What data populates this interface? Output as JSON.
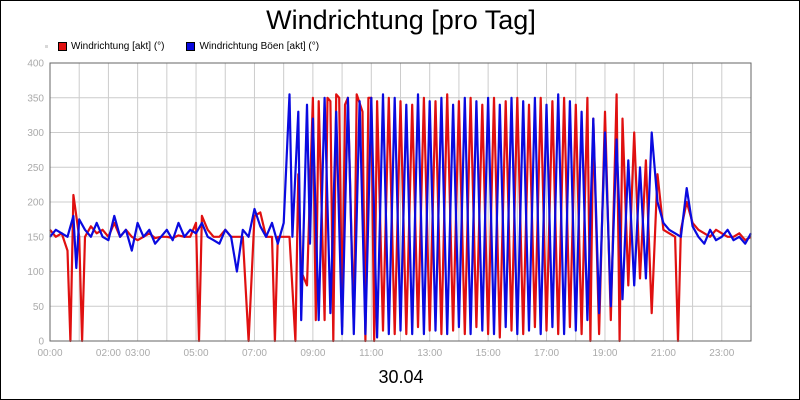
{
  "chart_data": {
    "type": "line",
    "title": "Windrichtung [pro Tag]",
    "xlabel": "30.04",
    "ylabel": "",
    "ylim": [
      0,
      400
    ],
    "yticks": [
      0,
      50,
      100,
      150,
      200,
      250,
      300,
      350,
      400
    ],
    "xlim": [
      0,
      24
    ],
    "xticks": [
      {
        "pos": 0,
        "label": "00:00"
      },
      {
        "pos": 2,
        "label": "02:00"
      },
      {
        "pos": 3,
        "label": "03:00"
      },
      {
        "pos": 5,
        "label": "05:00"
      },
      {
        "pos": 7,
        "label": "07:00"
      },
      {
        "pos": 9,
        "label": "09:00"
      },
      {
        "pos": 11,
        "label": "11:00"
      },
      {
        "pos": 13,
        "label": "13:00"
      },
      {
        "pos": 15,
        "label": "15:00"
      },
      {
        "pos": 17,
        "label": "17:00"
      },
      {
        "pos": 19,
        "label": "19:00"
      },
      {
        "pos": 21,
        "label": "21:00"
      },
      {
        "pos": 23,
        "label": "23:00"
      }
    ],
    "grid": true,
    "legend_position": "top-left",
    "series": [
      {
        "name": "Windrichtung [akt] (°)",
        "color": "#e01010",
        "points": [
          [
            0.0,
            160
          ],
          [
            0.2,
            150
          ],
          [
            0.4,
            155
          ],
          [
            0.6,
            130
          ],
          [
            0.7,
            0
          ],
          [
            0.8,
            210
          ],
          [
            1.0,
            150
          ],
          [
            1.1,
            0
          ],
          [
            1.2,
            150
          ],
          [
            1.4,
            165
          ],
          [
            1.6,
            155
          ],
          [
            1.8,
            160
          ],
          [
            2.0,
            150
          ],
          [
            2.2,
            170
          ],
          [
            2.4,
            150
          ],
          [
            2.6,
            160
          ],
          [
            2.8,
            150
          ],
          [
            3.0,
            145
          ],
          [
            3.2,
            150
          ],
          [
            3.4,
            155
          ],
          [
            3.6,
            148
          ],
          [
            3.8,
            150
          ],
          [
            4.0,
            150
          ],
          [
            4.2,
            148
          ],
          [
            4.4,
            152
          ],
          [
            4.6,
            150
          ],
          [
            4.8,
            150
          ],
          [
            5.0,
            170
          ],
          [
            5.1,
            0
          ],
          [
            5.2,
            180
          ],
          [
            5.4,
            160
          ],
          [
            5.6,
            150
          ],
          [
            5.8,
            150
          ],
          [
            6.0,
            160
          ],
          [
            6.2,
            150
          ],
          [
            6.4,
            150
          ],
          [
            6.6,
            150
          ],
          [
            6.8,
            0
          ],
          [
            7.0,
            180
          ],
          [
            7.2,
            185
          ],
          [
            7.4,
            150
          ],
          [
            7.6,
            150
          ],
          [
            7.7,
            0
          ],
          [
            7.8,
            150
          ],
          [
            8.0,
            150
          ],
          [
            8.2,
            150
          ],
          [
            8.4,
            0
          ],
          [
            8.5,
            240
          ],
          [
            8.6,
            100
          ],
          [
            8.8,
            80
          ],
          [
            9.0,
            350
          ],
          [
            9.1,
            30
          ],
          [
            9.2,
            345
          ],
          [
            9.4,
            30
          ],
          [
            9.5,
            350
          ],
          [
            9.6,
            345
          ],
          [
            9.7,
            0
          ],
          [
            9.8,
            355
          ],
          [
            9.9,
            350
          ],
          [
            10.0,
            20
          ],
          [
            10.1,
            340
          ],
          [
            10.2,
            350
          ],
          [
            10.4,
            20
          ],
          [
            10.5,
            355
          ],
          [
            10.7,
            330
          ],
          [
            10.8,
            0
          ],
          [
            10.9,
            350
          ],
          [
            11.0,
            350
          ],
          [
            11.1,
            0
          ],
          [
            11.2,
            345
          ],
          [
            11.4,
            15
          ],
          [
            11.6,
            350
          ],
          [
            11.8,
            10
          ],
          [
            12.0,
            345
          ],
          [
            12.2,
            10
          ],
          [
            12.4,
            340
          ],
          [
            12.6,
            20
          ],
          [
            12.8,
            350
          ],
          [
            13.0,
            15
          ],
          [
            13.2,
            345
          ],
          [
            13.4,
            10
          ],
          [
            13.6,
            355
          ],
          [
            13.8,
            15
          ],
          [
            14.0,
            345
          ],
          [
            14.2,
            10
          ],
          [
            14.4,
            350
          ],
          [
            14.6,
            20
          ],
          [
            14.8,
            340
          ],
          [
            15.0,
            10
          ],
          [
            15.2,
            350
          ],
          [
            15.4,
            5
          ],
          [
            15.6,
            345
          ],
          [
            15.8,
            15
          ],
          [
            16.0,
            350
          ],
          [
            16.2,
            10
          ],
          [
            16.4,
            340
          ],
          [
            16.6,
            20
          ],
          [
            16.8,
            350
          ],
          [
            17.0,
            15
          ],
          [
            17.2,
            345
          ],
          [
            17.4,
            10
          ],
          [
            17.6,
            350
          ],
          [
            17.8,
            20
          ],
          [
            18.0,
            340
          ],
          [
            18.2,
            10
          ],
          [
            18.4,
            350
          ],
          [
            18.5,
            0
          ],
          [
            18.6,
            320
          ],
          [
            18.8,
            10
          ],
          [
            19.0,
            330
          ],
          [
            19.2,
            30
          ],
          [
            19.4,
            355
          ],
          [
            19.5,
            0
          ],
          [
            19.6,
            320
          ],
          [
            19.8,
            80
          ],
          [
            20.0,
            300
          ],
          [
            20.2,
            90
          ],
          [
            20.4,
            260
          ],
          [
            20.6,
            40
          ],
          [
            20.8,
            240
          ],
          [
            21.0,
            160
          ],
          [
            21.2,
            155
          ],
          [
            21.4,
            150
          ],
          [
            21.5,
            0
          ],
          [
            21.6,
            160
          ],
          [
            21.8,
            200
          ],
          [
            22.0,
            170
          ],
          [
            22.2,
            160
          ],
          [
            22.4,
            155
          ],
          [
            22.6,
            150
          ],
          [
            22.8,
            160
          ],
          [
            23.0,
            155
          ],
          [
            23.2,
            150
          ],
          [
            23.4,
            150
          ],
          [
            23.6,
            155
          ],
          [
            23.8,
            145
          ],
          [
            24.0,
            150
          ]
        ]
      },
      {
        "name": "Windrichtung Böen [akt] (°)",
        "color": "#0a0ae0",
        "points": [
          [
            0.0,
            150
          ],
          [
            0.2,
            160
          ],
          [
            0.4,
            155
          ],
          [
            0.6,
            150
          ],
          [
            0.8,
            180
          ],
          [
            0.9,
            105
          ],
          [
            1.0,
            175
          ],
          [
            1.2,
            160
          ],
          [
            1.4,
            150
          ],
          [
            1.6,
            170
          ],
          [
            1.8,
            150
          ],
          [
            2.0,
            145
          ],
          [
            2.2,
            180
          ],
          [
            2.4,
            150
          ],
          [
            2.6,
            160
          ],
          [
            2.8,
            130
          ],
          [
            3.0,
            170
          ],
          [
            3.2,
            150
          ],
          [
            3.4,
            160
          ],
          [
            3.6,
            140
          ],
          [
            3.8,
            150
          ],
          [
            4.0,
            160
          ],
          [
            4.2,
            145
          ],
          [
            4.4,
            170
          ],
          [
            4.6,
            150
          ],
          [
            4.8,
            160
          ],
          [
            5.0,
            155
          ],
          [
            5.2,
            170
          ],
          [
            5.4,
            150
          ],
          [
            5.6,
            145
          ],
          [
            5.8,
            140
          ],
          [
            6.0,
            160
          ],
          [
            6.2,
            150
          ],
          [
            6.4,
            100
          ],
          [
            6.6,
            160
          ],
          [
            6.8,
            150
          ],
          [
            7.0,
            190
          ],
          [
            7.2,
            165
          ],
          [
            7.4,
            150
          ],
          [
            7.6,
            170
          ],
          [
            7.8,
            140
          ],
          [
            8.0,
            170
          ],
          [
            8.2,
            355
          ],
          [
            8.3,
            150
          ],
          [
            8.5,
            330
          ],
          [
            8.6,
            30
          ],
          [
            8.8,
            340
          ],
          [
            8.9,
            140
          ],
          [
            9.0,
            320
          ],
          [
            9.2,
            30
          ],
          [
            9.4,
            350
          ],
          [
            9.6,
            40
          ],
          [
            9.8,
            330
          ],
          [
            10.0,
            10
          ],
          [
            10.2,
            350
          ],
          [
            10.4,
            10
          ],
          [
            10.6,
            345
          ],
          [
            10.8,
            10
          ],
          [
            11.0,
            350
          ],
          [
            11.2,
            5
          ],
          [
            11.4,
            355
          ],
          [
            11.6,
            10
          ],
          [
            11.8,
            350
          ],
          [
            12.0,
            15
          ],
          [
            12.2,
            340
          ],
          [
            12.4,
            10
          ],
          [
            12.6,
            355
          ],
          [
            12.8,
            10
          ],
          [
            13.0,
            345
          ],
          [
            13.2,
            15
          ],
          [
            13.4,
            350
          ],
          [
            13.6,
            10
          ],
          [
            13.8,
            340
          ],
          [
            14.0,
            20
          ],
          [
            14.2,
            350
          ],
          [
            14.4,
            10
          ],
          [
            14.6,
            345
          ],
          [
            14.8,
            15
          ],
          [
            15.0,
            350
          ],
          [
            15.2,
            10
          ],
          [
            15.4,
            340
          ],
          [
            15.6,
            20
          ],
          [
            15.8,
            350
          ],
          [
            16.0,
            10
          ],
          [
            16.2,
            345
          ],
          [
            16.4,
            15
          ],
          [
            16.6,
            350
          ],
          [
            16.8,
            10
          ],
          [
            17.0,
            340
          ],
          [
            17.2,
            20
          ],
          [
            17.4,
            355
          ],
          [
            17.6,
            10
          ],
          [
            17.8,
            345
          ],
          [
            18.0,
            15
          ],
          [
            18.2,
            330
          ],
          [
            18.4,
            30
          ],
          [
            18.6,
            320
          ],
          [
            18.8,
            40
          ],
          [
            19.0,
            300
          ],
          [
            19.2,
            50
          ],
          [
            19.4,
            290
          ],
          [
            19.6,
            60
          ],
          [
            19.8,
            260
          ],
          [
            20.0,
            80
          ],
          [
            20.2,
            250
          ],
          [
            20.4,
            90
          ],
          [
            20.6,
            300
          ],
          [
            20.8,
            200
          ],
          [
            21.0,
            170
          ],
          [
            21.2,
            160
          ],
          [
            21.4,
            155
          ],
          [
            21.6,
            150
          ],
          [
            21.8,
            220
          ],
          [
            22.0,
            165
          ],
          [
            22.2,
            150
          ],
          [
            22.4,
            140
          ],
          [
            22.6,
            160
          ],
          [
            22.8,
            145
          ],
          [
            23.0,
            150
          ],
          [
            23.2,
            160
          ],
          [
            23.4,
            145
          ],
          [
            23.6,
            150
          ],
          [
            23.8,
            140
          ],
          [
            24.0,
            155
          ]
        ]
      }
    ]
  }
}
